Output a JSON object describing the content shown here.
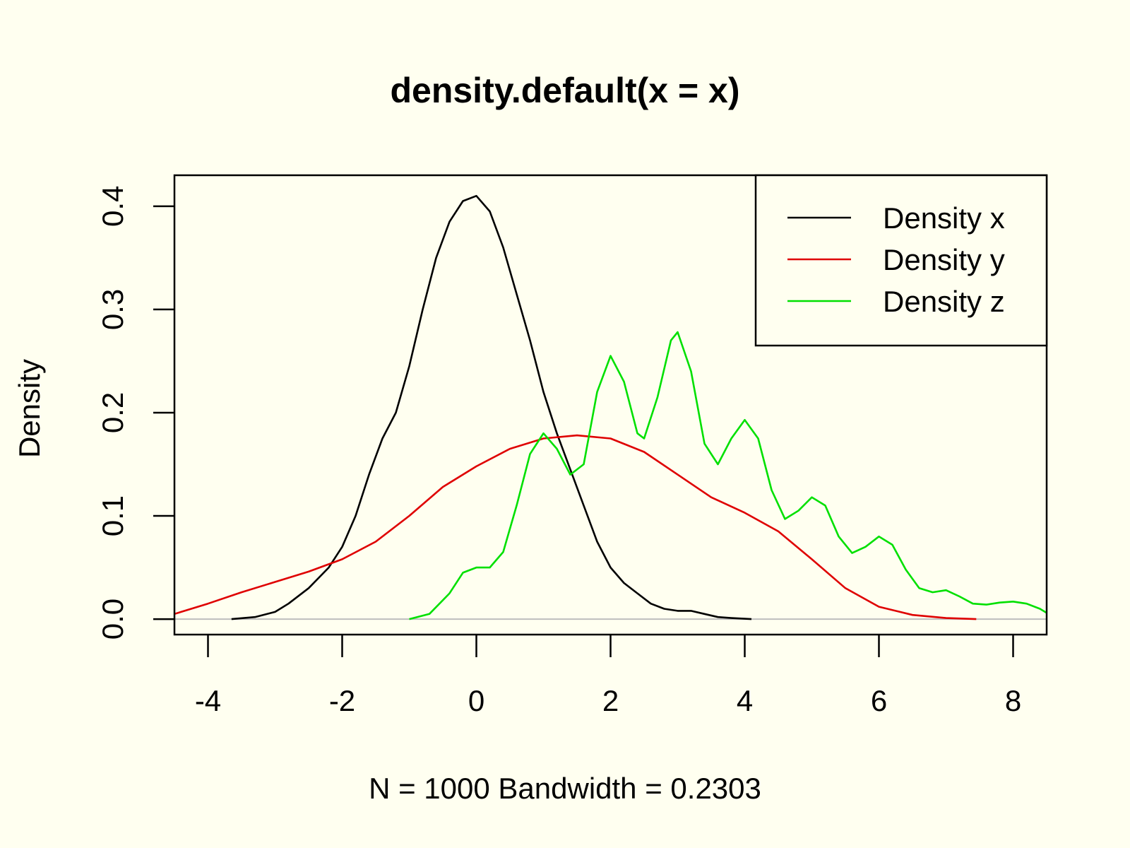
{
  "colors": {
    "background": "#FFFFF0",
    "axis": "#000000",
    "baseline": "#BEBEBE"
  },
  "chart_data": {
    "type": "line",
    "title": "density.default(x = x)",
    "xlabel": "N = 1000   Bandwidth = 0.2303",
    "ylabel": "Density",
    "xlim": [
      -4.5,
      8.5
    ],
    "ylim": [
      -0.015,
      0.43
    ],
    "x_ticks": [
      -4,
      -2,
      0,
      2,
      4,
      6,
      8
    ],
    "x_tick_labels": [
      "-4",
      "-2",
      "0",
      "2",
      "4",
      "6",
      "8"
    ],
    "y_ticks": [
      0.0,
      0.1,
      0.2,
      0.3,
      0.4
    ],
    "y_tick_labels": [
      "0.0",
      "0.1",
      "0.2",
      "0.3",
      "0.4"
    ],
    "grid": false,
    "legend_position": "top-right",
    "series": [
      {
        "name": "Density x",
        "color": "#000000",
        "points": [
          [
            -3.65,
            0.0
          ],
          [
            -3.3,
            0.002
          ],
          [
            -3.0,
            0.007
          ],
          [
            -2.8,
            0.015
          ],
          [
            -2.5,
            0.03
          ],
          [
            -2.2,
            0.05
          ],
          [
            -2.0,
            0.07
          ],
          [
            -1.8,
            0.1
          ],
          [
            -1.6,
            0.14
          ],
          [
            -1.4,
            0.175
          ],
          [
            -1.2,
            0.2
          ],
          [
            -1.0,
            0.245
          ],
          [
            -0.8,
            0.3
          ],
          [
            -0.6,
            0.35
          ],
          [
            -0.4,
            0.385
          ],
          [
            -0.2,
            0.405
          ],
          [
            0.0,
            0.41
          ],
          [
            0.2,
            0.395
          ],
          [
            0.4,
            0.36
          ],
          [
            0.6,
            0.315
          ],
          [
            0.8,
            0.27
          ],
          [
            1.0,
            0.22
          ],
          [
            1.2,
            0.18
          ],
          [
            1.4,
            0.145
          ],
          [
            1.6,
            0.11
          ],
          [
            1.8,
            0.075
          ],
          [
            2.0,
            0.05
          ],
          [
            2.2,
            0.035
          ],
          [
            2.4,
            0.025
          ],
          [
            2.6,
            0.015
          ],
          [
            2.8,
            0.01
          ],
          [
            3.0,
            0.008
          ],
          [
            3.2,
            0.008
          ],
          [
            3.4,
            0.005
          ],
          [
            3.6,
            0.002
          ],
          [
            3.8,
            0.001
          ],
          [
            4.1,
            0.0
          ]
        ]
      },
      {
        "name": "Density y",
        "color": "#DF0000",
        "points": [
          [
            -4.5,
            0.005
          ],
          [
            -4.0,
            0.015
          ],
          [
            -3.5,
            0.026
          ],
          [
            -3.0,
            0.036
          ],
          [
            -2.5,
            0.046
          ],
          [
            -2.0,
            0.058
          ],
          [
            -1.5,
            0.075
          ],
          [
            -1.0,
            0.1
          ],
          [
            -0.5,
            0.128
          ],
          [
            0.0,
            0.148
          ],
          [
            0.5,
            0.165
          ],
          [
            1.0,
            0.175
          ],
          [
            1.5,
            0.178
          ],
          [
            2.0,
            0.175
          ],
          [
            2.5,
            0.162
          ],
          [
            3.0,
            0.14
          ],
          [
            3.5,
            0.118
          ],
          [
            4.0,
            0.103
          ],
          [
            4.5,
            0.085
          ],
          [
            5.0,
            0.058
          ],
          [
            5.5,
            0.03
          ],
          [
            6.0,
            0.012
          ],
          [
            6.5,
            0.004
          ],
          [
            7.0,
            0.001
          ],
          [
            7.45,
            0.0
          ]
        ]
      },
      {
        "name": "Density z",
        "color": "#00E000",
        "points": [
          [
            -1.0,
            0.0
          ],
          [
            -0.7,
            0.005
          ],
          [
            -0.4,
            0.025
          ],
          [
            -0.2,
            0.045
          ],
          [
            0.0,
            0.05
          ],
          [
            0.2,
            0.05
          ],
          [
            0.4,
            0.065
          ],
          [
            0.6,
            0.11
          ],
          [
            0.8,
            0.16
          ],
          [
            1.0,
            0.18
          ],
          [
            1.2,
            0.165
          ],
          [
            1.4,
            0.14
          ],
          [
            1.6,
            0.15
          ],
          [
            1.8,
            0.22
          ],
          [
            2.0,
            0.255
          ],
          [
            2.2,
            0.23
          ],
          [
            2.4,
            0.18
          ],
          [
            2.5,
            0.175
          ],
          [
            2.7,
            0.215
          ],
          [
            2.9,
            0.27
          ],
          [
            3.0,
            0.278
          ],
          [
            3.2,
            0.24
          ],
          [
            3.4,
            0.17
          ],
          [
            3.6,
            0.15
          ],
          [
            3.8,
            0.175
          ],
          [
            4.0,
            0.193
          ],
          [
            4.2,
            0.175
          ],
          [
            4.4,
            0.125
          ],
          [
            4.6,
            0.097
          ],
          [
            4.8,
            0.105
          ],
          [
            5.0,
            0.118
          ],
          [
            5.2,
            0.11
          ],
          [
            5.4,
            0.08
          ],
          [
            5.6,
            0.064
          ],
          [
            5.8,
            0.07
          ],
          [
            6.0,
            0.08
          ],
          [
            6.2,
            0.072
          ],
          [
            6.4,
            0.048
          ],
          [
            6.6,
            0.03
          ],
          [
            6.8,
            0.026
          ],
          [
            7.0,
            0.028
          ],
          [
            7.2,
            0.022
          ],
          [
            7.4,
            0.015
          ],
          [
            7.6,
            0.014
          ],
          [
            7.8,
            0.016
          ],
          [
            8.0,
            0.017
          ],
          [
            8.2,
            0.015
          ],
          [
            8.4,
            0.01
          ],
          [
            8.5,
            0.006
          ]
        ]
      }
    ]
  }
}
